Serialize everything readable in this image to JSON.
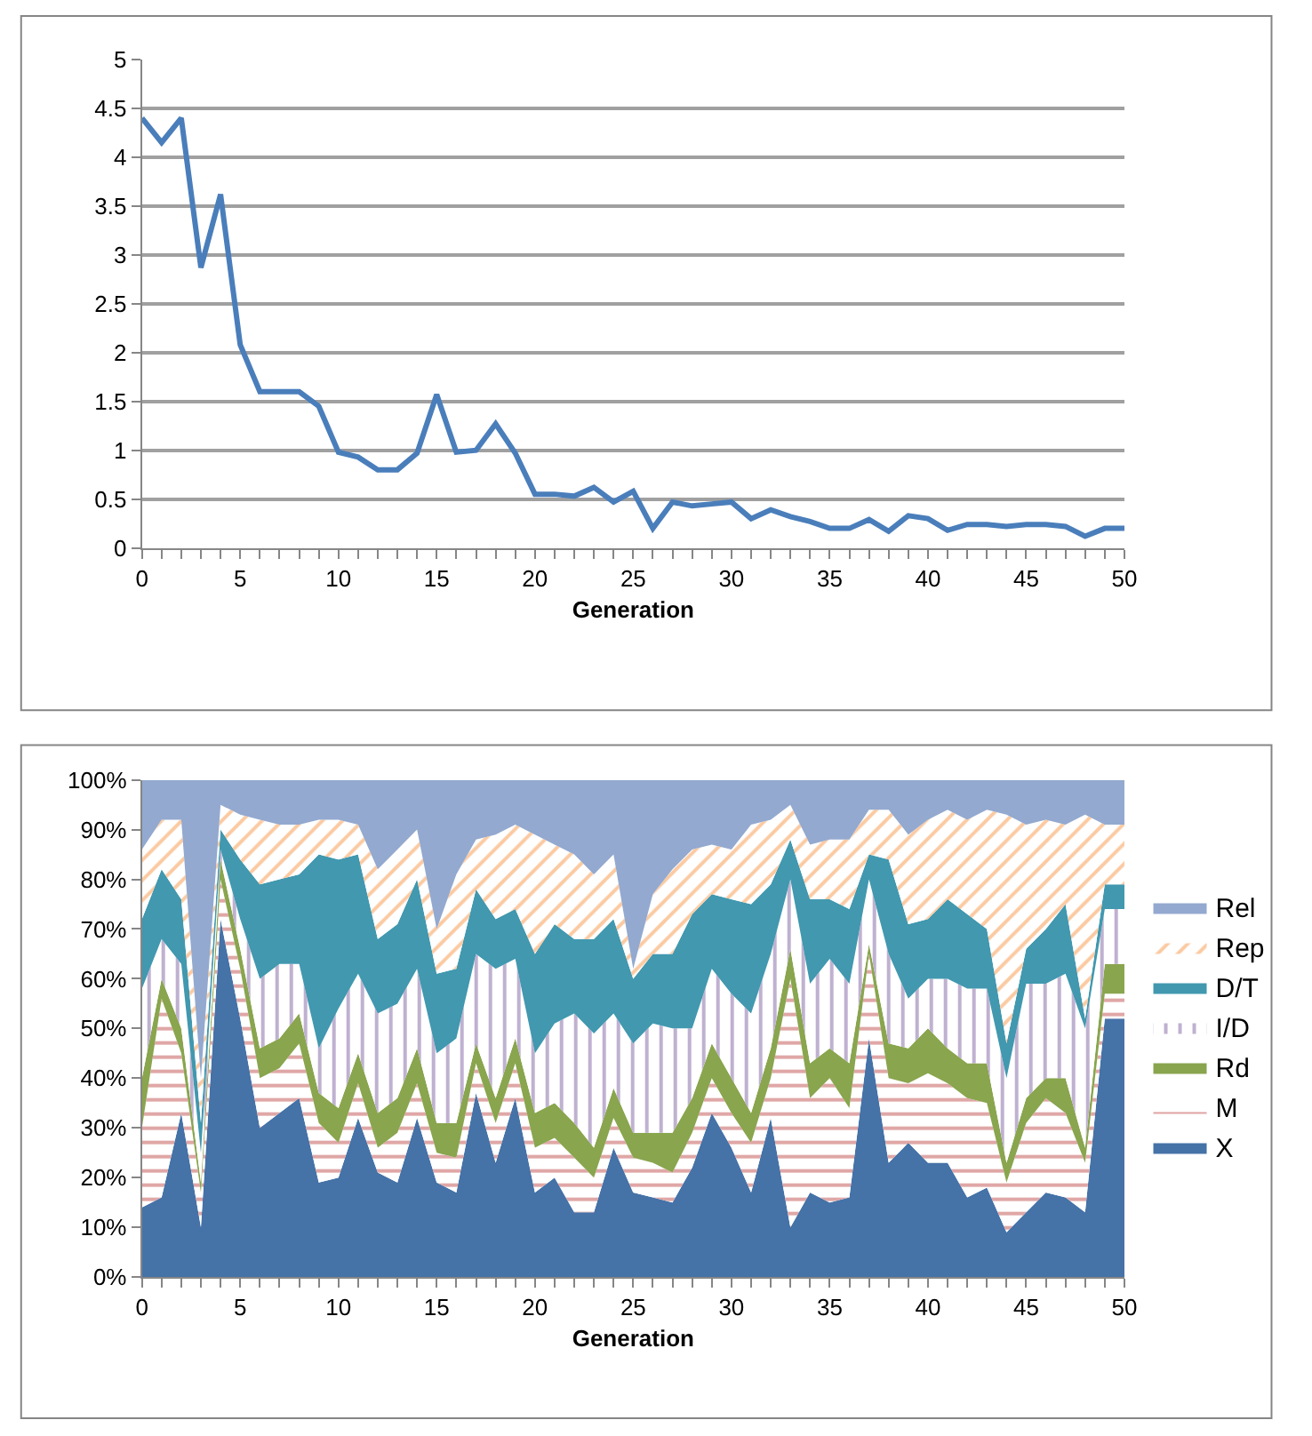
{
  "chart_data": [
    {
      "type": "line",
      "xlabel": "Generation",
      "x": [
        0,
        1,
        2,
        3,
        4,
        5,
        6,
        7,
        8,
        9,
        10,
        11,
        12,
        13,
        14,
        15,
        16,
        17,
        18,
        19,
        20,
        21,
        22,
        23,
        24,
        25,
        26,
        27,
        28,
        29,
        30,
        31,
        32,
        33,
        34,
        35,
        36,
        37,
        38,
        39,
        40,
        41,
        42,
        43,
        44,
        45,
        46,
        47,
        48,
        49,
        50
      ],
      "series": [
        {
          "color": "#4a7ebb",
          "values": [
            4.4,
            4.15,
            4.4,
            2.87,
            3.62,
            2.08,
            1.6,
            1.6,
            1.6,
            1.45,
            0.98,
            0.93,
            0.8,
            0.8,
            0.97,
            1.57,
            0.98,
            1.0,
            1.27,
            0.97,
            0.55,
            0.55,
            0.53,
            0.62,
            0.47,
            0.58,
            0.2,
            0.47,
            0.43,
            0.45,
            0.47,
            0.3,
            0.39,
            0.32,
            0.27,
            0.2,
            0.2,
            0.29,
            0.17,
            0.33,
            0.3,
            0.18,
            0.24,
            0.24,
            0.22,
            0.24,
            0.24,
            0.22,
            0.12,
            0.2,
            0.2
          ]
        }
      ],
      "xlim": [
        0,
        50
      ],
      "xticks": [
        0,
        5,
        10,
        15,
        20,
        25,
        30,
        35,
        40,
        45,
        50
      ],
      "ylim": [
        0,
        5
      ],
      "yticks": [
        0,
        0.5,
        1,
        1.5,
        2,
        2.5,
        3,
        3.5,
        4,
        4.5,
        5
      ],
      "grid": "y"
    },
    {
      "type": "area",
      "stacked": true,
      "xlabel": "Generation",
      "legend": "right",
      "x": [
        0,
        1,
        2,
        3,
        4,
        5,
        6,
        7,
        8,
        9,
        10,
        11,
        12,
        13,
        14,
        15,
        16,
        17,
        18,
        19,
        20,
        21,
        22,
        23,
        24,
        25,
        26,
        27,
        28,
        29,
        30,
        31,
        32,
        33,
        34,
        35,
        36,
        37,
        38,
        39,
        40,
        41,
        42,
        43,
        44,
        45,
        46,
        47,
        48,
        49,
        50
      ],
      "series": [
        {
          "name": "X",
          "color": "#4572a7",
          "values": [
            14,
            16,
            33,
            10,
            72,
            52,
            30,
            33,
            36,
            19,
            20,
            32,
            21,
            19,
            32,
            19,
            17,
            37,
            23,
            36,
            17,
            20,
            13,
            13,
            26,
            17,
            16,
            15,
            22,
            33,
            26,
            17,
            32,
            10,
            17,
            15,
            16,
            48,
            23,
            27,
            23,
            23,
            16,
            18,
            9,
            13,
            17,
            16,
            13,
            52,
            52
          ]
        },
        {
          "name": "M",
          "color": "#c0504d",
          "values": [
            16,
            40,
            12,
            7,
            8,
            10,
            10,
            9,
            11,
            12,
            7,
            7,
            5,
            10,
            7,
            6,
            7,
            6,
            8,
            7,
            9,
            8,
            11,
            7,
            6,
            7,
            7,
            6,
            7,
            7,
            7,
            10,
            8,
            50,
            19,
            25,
            18,
            17,
            17,
            12,
            18,
            16,
            20,
            17,
            10,
            18,
            19,
            17,
            10,
            5,
            5
          ]
        },
        {
          "name": "Rd",
          "color": "#89a54e",
          "values": [
            10,
            4,
            5,
            2,
            4,
            4,
            6,
            6,
            6,
            6,
            7,
            6,
            7,
            7,
            7,
            6,
            7,
            4,
            5,
            5,
            7,
            7,
            7,
            6,
            6,
            5,
            6,
            8,
            7,
            7,
            7,
            6,
            6,
            6,
            7,
            6,
            9,
            2,
            7,
            7,
            9,
            7,
            7,
            8,
            4,
            5,
            4,
            7,
            3,
            6,
            6
          ]
        },
        {
          "name": "I/D",
          "color": "#8064a2",
          "values": [
            18,
            8,
            13,
            6,
            2,
            6,
            14,
            15,
            10,
            9,
            20,
            16,
            20,
            19,
            16,
            14,
            17,
            18,
            26,
            16,
            12,
            16,
            22,
            23,
            15,
            18,
            22,
            21,
            14,
            15,
            17,
            20,
            19,
            14,
            16,
            18,
            16,
            13,
            18,
            10,
            10,
            14,
            15,
            15,
            17,
            23,
            19,
            21,
            24,
            11,
            11
          ]
        },
        {
          "name": "D/T",
          "color": "#4198af",
          "values": [
            14,
            14,
            13,
            6,
            4,
            12,
            19,
            17,
            18,
            39,
            30,
            24,
            15,
            16,
            18,
            16,
            14,
            13,
            10,
            10,
            20,
            20,
            15,
            19,
            19,
            13,
            14,
            15,
            23,
            15,
            19,
            22,
            14,
            8,
            17,
            12,
            15,
            5,
            19,
            15,
            12,
            16,
            15,
            12,
            7,
            7,
            11,
            14,
            2,
            5,
            5
          ]
        },
        {
          "name": "Rep",
          "color": "#f79646",
          "values": [
            14,
            10,
            16,
            9,
            5,
            9,
            13,
            11,
            10,
            7,
            8,
            6,
            14,
            15,
            10,
            9,
            19,
            10,
            17,
            17,
            24,
            16,
            17,
            13,
            13,
            2,
            12,
            17,
            13,
            10,
            10,
            16,
            13,
            7,
            11,
            12,
            14,
            9,
            10,
            18,
            20,
            18,
            19,
            24,
            46,
            25,
            22,
            16,
            41,
            12,
            12
          ]
        },
        {
          "name": "Rel",
          "color": "#93a9cf",
          "values": [
            14,
            8,
            8,
            60,
            5,
            7,
            8,
            9,
            9,
            8,
            8,
            9,
            18,
            14,
            10,
            30,
            19,
            12,
            11,
            9,
            11,
            13,
            15,
            19,
            15,
            38,
            23,
            18,
            14,
            13,
            14,
            9,
            8,
            5,
            13,
            12,
            12,
            6,
            6,
            11,
            8,
            6,
            8,
            6,
            7,
            9,
            8,
            9,
            7,
            9,
            9
          ]
        }
      ],
      "xlim": [
        0,
        50
      ],
      "xticks": [
        0,
        5,
        10,
        15,
        20,
        25,
        30,
        35,
        40,
        45,
        50
      ],
      "ylim": [
        0,
        100
      ],
      "yticks": [
        {
          "value": 0,
          "label": "0%"
        },
        {
          "value": 10,
          "label": "10%"
        },
        {
          "value": 20,
          "label": "20%"
        },
        {
          "value": 30,
          "label": "30%"
        },
        {
          "value": 40,
          "label": "40%"
        },
        {
          "value": 50,
          "label": "50%"
        },
        {
          "value": 60,
          "label": "60%"
        },
        {
          "value": 70,
          "label": "70%"
        },
        {
          "value": 80,
          "label": "80%"
        },
        {
          "value": 90,
          "label": "90%"
        },
        {
          "value": 100,
          "label": "100%"
        }
      ]
    }
  ]
}
